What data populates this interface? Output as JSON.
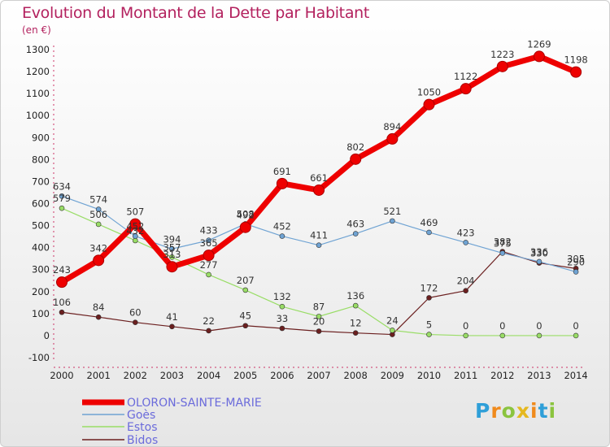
{
  "title": "Evolution du Montant de la Dette par Habitant",
  "unit": "(en €)",
  "logo": "Proxiti",
  "chart_data": {
    "type": "line",
    "x": [
      "2000",
      "2001",
      "2002",
      "2003",
      "2004",
      "2005",
      "2006",
      "2007",
      "2008",
      "2009",
      "2010",
      "2011",
      "2012",
      "2013",
      "2014"
    ],
    "ylim": [
      -100,
      1300
    ],
    "yticks": [
      -100,
      0,
      100,
      200,
      300,
      400,
      500,
      600,
      700,
      800,
      900,
      1000,
      1100,
      1200,
      1300
    ],
    "grid": false,
    "legend_position": "bottom-left",
    "series": [
      {
        "name": "OLORON-SAINTE-MARIE",
        "color": "#ee0000",
        "width": 7,
        "values": [
          243,
          342,
          507,
          313,
          365,
          492,
          691,
          661,
          802,
          894,
          1050,
          1122,
          1223,
          1269,
          1198
        ]
      },
      {
        "name": "Goès",
        "color": "#6fa3d3",
        "width": 1.2,
        "values": [
          634,
          574,
          452,
          394,
          433,
          508,
          452,
          411,
          463,
          521,
          469,
          423,
          375,
          336,
          290
        ]
      },
      {
        "name": "Estos",
        "color": "#99dd66",
        "width": 1.2,
        "values": [
          579,
          506,
          432,
          357,
          277,
          207,
          132,
          87,
          136,
          24,
          5,
          0,
          0,
          0,
          0
        ]
      },
      {
        "name": "Bidos",
        "color": "#6b1f1f",
        "width": 1.2,
        "values": [
          106,
          84,
          60,
          41,
          22,
          45,
          33,
          20,
          12,
          5,
          172,
          204,
          382,
          330,
          305
        ]
      }
    ],
    "labels": [
      {
        "series": 0,
        "values": [
          243,
          342,
          507,
          313,
          365,
          492,
          691,
          661,
          802,
          894,
          1050,
          1122,
          1223,
          1269,
          1198
        ]
      },
      {
        "series": 1,
        "values": [
          634,
          574,
          452,
          394,
          433,
          508,
          452,
          411,
          463,
          521,
          469,
          423,
          375,
          336,
          290
        ]
      },
      {
        "series": 2,
        "values": [
          579,
          506,
          432,
          357,
          277,
          207,
          132,
          87,
          136,
          24,
          5,
          0,
          0,
          0,
          0
        ]
      },
      {
        "series": 3,
        "values": [
          106,
          84,
          60,
          41,
          22,
          45,
          33,
          20,
          12,
          "",
          172,
          204,
          382,
          330,
          305
        ]
      }
    ]
  }
}
